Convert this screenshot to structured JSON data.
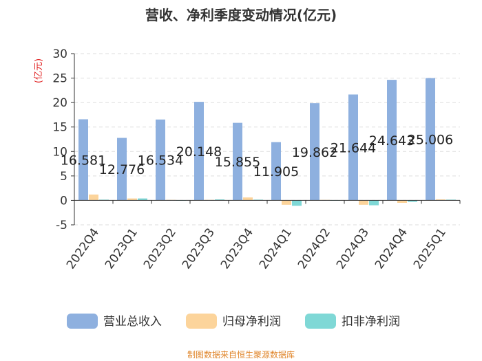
{
  "chart_data": {
    "type": "bar",
    "title": "营收、净利季度变动情况(亿元)",
    "ylabel": "(亿元)",
    "ylim": [
      -5,
      30
    ],
    "yticks": [
      -5,
      0,
      5,
      10,
      15,
      20,
      25,
      30
    ],
    "grid": true,
    "legend_position": "bottom",
    "categories": [
      "2022Q4",
      "2023Q1",
      "2023Q2",
      "2023Q3",
      "2023Q4",
      "2024Q1",
      "2024Q2",
      "2024Q3",
      "2024Q4",
      "2025Q1"
    ],
    "series": [
      {
        "name": "营业总收入",
        "color": "#8eb0df",
        "values": [
          16.581,
          12.776,
          16.534,
          20.148,
          15.855,
          11.905,
          19.862,
          21.644,
          24.643,
          25.006
        ],
        "labels": [
          "16.581",
          "12.776",
          "16.534",
          "20.148",
          "15.855",
          "11.905",
          "19.862",
          "21.644",
          "24.643",
          "25.006"
        ]
      },
      {
        "name": "归母净利润",
        "color": "#fcd49b",
        "values": [
          1.2,
          0.4,
          0.1,
          0.1,
          0.6,
          -0.9,
          0.1,
          -0.9,
          -0.5,
          0.2
        ]
      },
      {
        "name": "扣非净利润",
        "color": "#7fd8d6",
        "values": [
          0.15,
          0.4,
          0.05,
          0.2,
          0.15,
          -1.1,
          0.05,
          -1.0,
          -0.3,
          0.15
        ]
      }
    ]
  },
  "footer": {
    "source": "制图数据来自恒生聚源数据库",
    "source_color": "#e0852a"
  },
  "colors": {
    "ylabel": "#e02020",
    "axis_text": "#333333",
    "grid": "#dddddd"
  }
}
